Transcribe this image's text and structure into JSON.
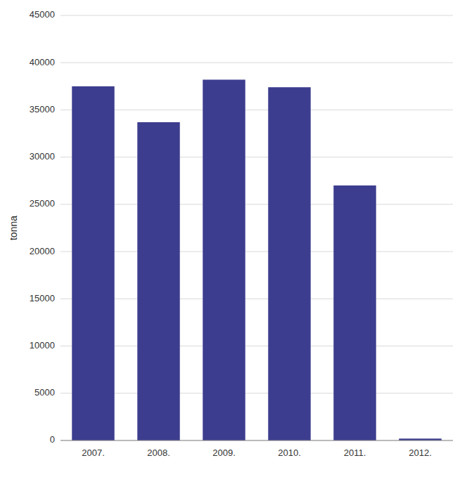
{
  "chart_data": {
    "type": "bar",
    "ylabel": "tonna",
    "categories": [
      "2007.",
      "2008.",
      "2009.",
      "2010.",
      "2011.",
      "2012."
    ],
    "values": [
      37500,
      33700,
      38200,
      37400,
      27000,
      200
    ],
    "color": "#3d3d8f",
    "ylim": [
      0,
      45000
    ],
    "yticks": [
      0,
      5000,
      10000,
      15000,
      20000,
      25000,
      30000,
      35000,
      40000,
      45000
    ],
    "grid": true
  }
}
